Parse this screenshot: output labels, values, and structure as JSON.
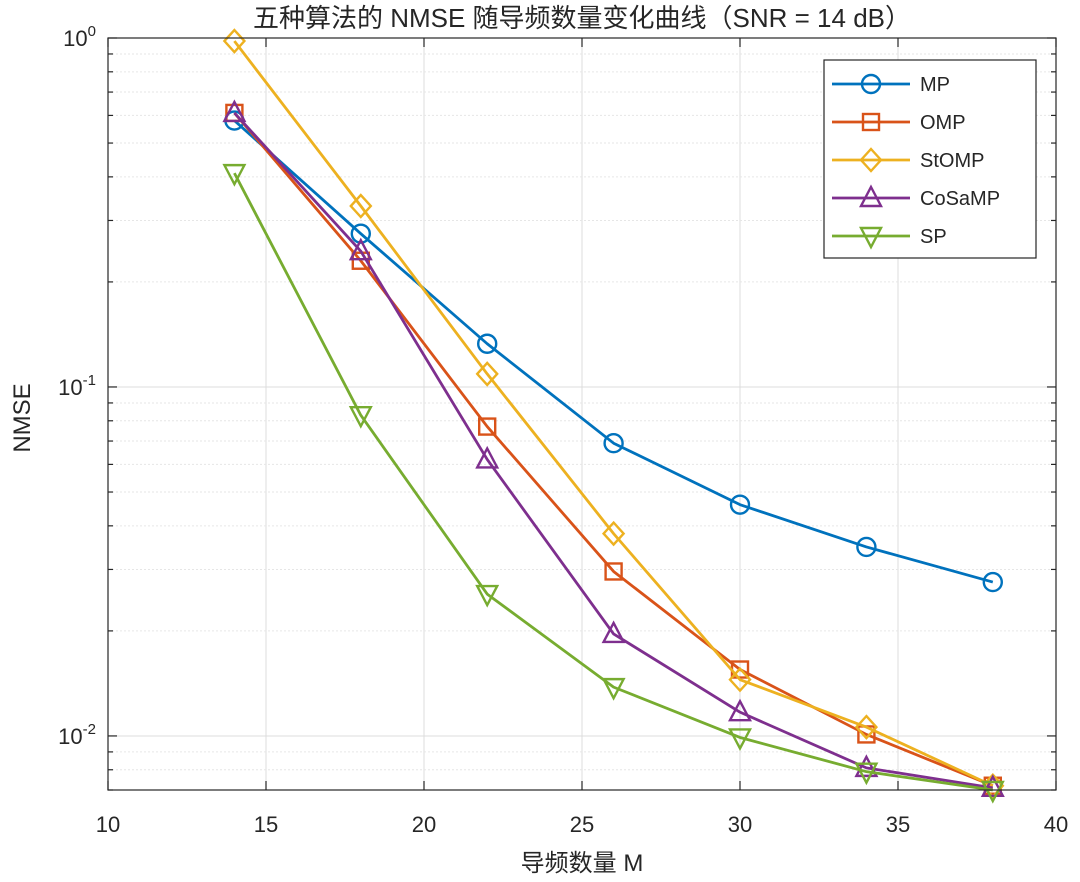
{
  "chart_data": {
    "type": "line",
    "title": "五种算法的 NMSE 随导频数量变化曲线（SNR = 14 dB）",
    "xlabel": "导频数量 M",
    "ylabel": "NMSE",
    "xlim": [
      10,
      40
    ],
    "ylim": [
      0.007,
      1.0
    ],
    "yscale": "log",
    "grid": true,
    "legend_position": "top-right",
    "x_ticks": [
      10,
      15,
      20,
      25,
      30,
      35,
      40
    ],
    "y_ticks": [
      {
        "base": "10",
        "exp": "0",
        "value": 1
      },
      {
        "base": "10",
        "exp": "-1",
        "value": 0.1
      },
      {
        "base": "10",
        "exp": "-2",
        "value": 0.01
      }
    ],
    "x": [
      14,
      18,
      22,
      26,
      30,
      34,
      38
    ],
    "series": [
      {
        "name": "MP",
        "color": "#0072BD",
        "marker": "circle",
        "values": [
          0.58,
          0.275,
          0.133,
          0.069,
          0.046,
          0.0348,
          0.0276
        ]
      },
      {
        "name": "OMP",
        "color": "#D95319",
        "marker": "square",
        "values": [
          0.61,
          0.23,
          0.077,
          0.0296,
          0.0155,
          0.0101,
          0.0072
        ]
      },
      {
        "name": "StOMP",
        "color": "#EDB120",
        "marker": "diamond",
        "values": [
          0.98,
          0.33,
          0.109,
          0.038,
          0.0145,
          0.0106,
          0.0072
        ]
      },
      {
        "name": "CoSaMP",
        "color": "#7E2F8E",
        "marker": "triangle-up",
        "values": [
          0.61,
          0.245,
          0.062,
          0.0196,
          0.0117,
          0.0081,
          0.0071
        ]
      },
      {
        "name": "SP",
        "color": "#77AC30",
        "marker": "triangle-down",
        "values": [
          0.41,
          0.083,
          0.0255,
          0.0138,
          0.0099,
          0.0079,
          0.007
        ]
      }
    ]
  }
}
